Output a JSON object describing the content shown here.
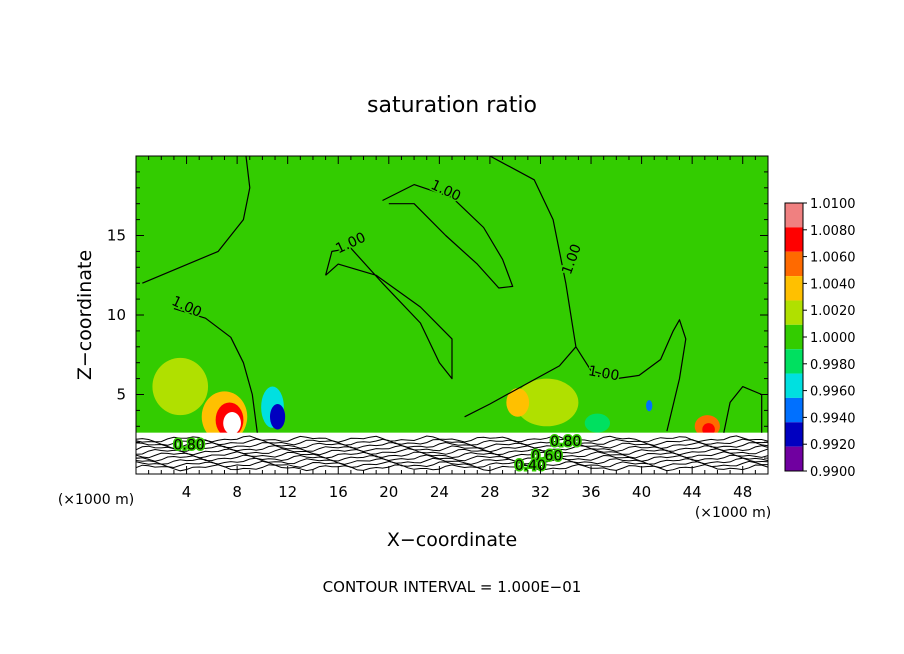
{
  "chart_data": {
    "type": "heatmap",
    "title": "saturation ratio",
    "xlabel": "X−coordinate",
    "ylabel": "Z−coordinate",
    "x_scale_label": "(×1000 m)",
    "x_scale_label_right": "(×1000 m)",
    "footer": "CONTOUR INTERVAL = 1.000E−01",
    "x_ticks": [
      4,
      8,
      12,
      16,
      20,
      24,
      28,
      32,
      36,
      40,
      44,
      48
    ],
    "y_ticks": [
      5,
      10,
      15
    ],
    "xlim": [
      0,
      50
    ],
    "ylim": [
      0,
      20
    ],
    "colorbar": {
      "labels": [
        "1.0100",
        "1.0080",
        "1.0060",
        "1.0040",
        "1.0020",
        "1.0000",
        "0.9980",
        "0.9960",
        "0.9940",
        "0.9920",
        "0.9900"
      ],
      "colors": [
        "#f08080",
        "#ff0000",
        "#ff6a00",
        "#ffc000",
        "#b0e000",
        "#33cc00",
        "#00e060",
        "#00e0e0",
        "#0070ff",
        "#0000c0",
        "#7000a0"
      ]
    },
    "field_color": "#33cc00",
    "contour_labels": [
      {
        "text": "1.00",
        "x": 24.5,
        "z": 17.8,
        "angle": 25
      },
      {
        "text": "1.00",
        "x": 17.0,
        "z": 14.5,
        "angle": -25
      },
      {
        "text": "1.00",
        "x": 4.0,
        "z": 10.5,
        "angle": 25
      },
      {
        "text": "1.00",
        "x": 34.5,
        "z": 13.5,
        "angle": -70
      },
      {
        "text": "1.00",
        "x": 37.0,
        "z": 6.3,
        "angle": 10
      },
      {
        "text": "0.80",
        "x": 4.2,
        "z": 1.8,
        "angle": 0
      },
      {
        "text": "0.80",
        "x": 34.0,
        "z": 2.0,
        "angle": 0
      },
      {
        "text": "0.60",
        "x": 32.5,
        "z": 1.1,
        "angle": 0
      },
      {
        "text": "0.40",
        "x": 31.2,
        "z": 0.5,
        "angle": 0
      }
    ],
    "contours_100": [
      [
        [
          0.5,
          12.0
        ],
        [
          3.5,
          13.0
        ],
        [
          6.5,
          14.0
        ],
        [
          8.5,
          16.0
        ],
        [
          9.0,
          18.0
        ],
        [
          8.7,
          20.0
        ]
      ],
      [
        [
          3.0,
          10.4
        ],
        [
          5.5,
          9.8
        ],
        [
          7.5,
          8.6
        ],
        [
          8.5,
          7.0
        ],
        [
          9.2,
          5.0
        ],
        [
          9.6,
          2.6
        ]
      ],
      [
        [
          19.5,
          17.2
        ],
        [
          22.0,
          18.2
        ],
        [
          25.0,
          17.4
        ],
        [
          27.5,
          15.5
        ],
        [
          29.0,
          13.5
        ],
        [
          29.8,
          11.8
        ],
        [
          28.7,
          11.7
        ],
        [
          27.0,
          13.2
        ],
        [
          24.5,
          15.0
        ],
        [
          22.0,
          17.0
        ],
        [
          20.0,
          17.0
        ]
      ],
      [
        [
          15.0,
          12.5
        ],
        [
          15.5,
          14.0
        ],
        [
          17.0,
          14.2
        ],
        [
          19.5,
          12.0
        ],
        [
          22.5,
          9.5
        ],
        [
          24.0,
          7.0
        ],
        [
          25.0,
          6.0
        ],
        [
          25.0,
          8.5
        ],
        [
          22.5,
          10.5
        ],
        [
          19.0,
          12.5
        ],
        [
          16.0,
          13.2
        ],
        [
          15.0,
          12.5
        ]
      ],
      [
        [
          28.0,
          20.0
        ],
        [
          31.5,
          18.5
        ],
        [
          33.0,
          16.0
        ],
        [
          34.0,
          12.0
        ],
        [
          34.5,
          9.5
        ],
        [
          34.8,
          8.0
        ],
        [
          33.5,
          6.8
        ],
        [
          30.5,
          5.5
        ],
        [
          28.0,
          4.4
        ],
        [
          26.0,
          3.6
        ]
      ],
      [
        [
          34.8,
          8.0
        ],
        [
          36.0,
          6.5
        ],
        [
          38.0,
          6.0
        ],
        [
          39.8,
          6.2
        ],
        [
          41.5,
          7.2
        ],
        [
          42.5,
          9.0
        ],
        [
          43.0,
          9.7
        ],
        [
          43.5,
          8.5
        ],
        [
          43.0,
          6.0
        ],
        [
          42.0,
          2.7
        ]
      ],
      [
        [
          46.5,
          2.6
        ],
        [
          47.0,
          4.5
        ],
        [
          48.0,
          5.5
        ],
        [
          49.5,
          5.0
        ],
        [
          49.5,
          2.6
        ]
      ]
    ],
    "blobs": [
      {
        "x": 7.0,
        "z": 3.6,
        "rx": 1.8,
        "rz": 1.6,
        "color": "#ffc000"
      },
      {
        "x": 7.4,
        "z": 3.4,
        "rx": 1.1,
        "rz": 1.1,
        "color": "#ff0000"
      },
      {
        "x": 7.6,
        "z": 3.2,
        "rx": 0.7,
        "rz": 0.7,
        "color": "#ffffff"
      },
      {
        "x": 10.8,
        "z": 4.2,
        "rx": 0.9,
        "rz": 1.3,
        "color": "#00e0e0"
      },
      {
        "x": 11.2,
        "z": 3.6,
        "rx": 0.6,
        "rz": 0.8,
        "color": "#0000c0"
      },
      {
        "x": 45.2,
        "z": 3.0,
        "rx": 1.0,
        "rz": 0.7,
        "color": "#ff6a00"
      },
      {
        "x": 45.3,
        "z": 2.8,
        "rx": 0.5,
        "rz": 0.4,
        "color": "#ff0000"
      },
      {
        "x": 40.6,
        "z": 4.3,
        "rx": 0.25,
        "rz": 0.35,
        "color": "#0070ff"
      },
      {
        "x": 3.5,
        "z": 5.5,
        "rx": 2.2,
        "rz": 1.8,
        "color": "#b0e000"
      },
      {
        "x": 32.5,
        "z": 4.5,
        "rx": 2.5,
        "rz": 1.5,
        "color": "#b0e000"
      },
      {
        "x": 36.5,
        "z": 3.2,
        "rx": 1.0,
        "rz": 0.6,
        "color": "#00e060"
      },
      {
        "x": 30.2,
        "z": 4.5,
        "rx": 0.9,
        "rz": 0.9,
        "color": "#ffc000"
      }
    ],
    "ground_levels": [
      0.4,
      0.6,
      0.8,
      1.0,
      1.2,
      1.4,
      1.6,
      1.8,
      2.0,
      2.2
    ]
  }
}
